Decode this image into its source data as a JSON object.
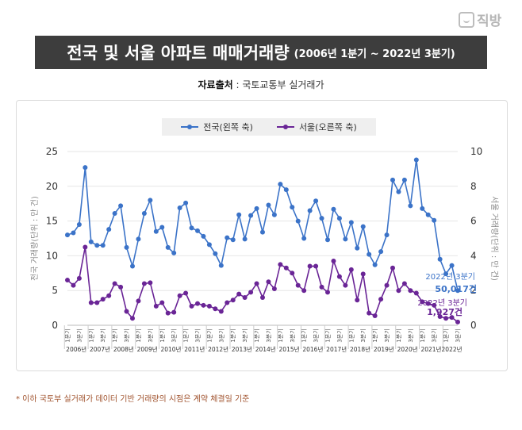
{
  "logo": {
    "text": "직방",
    "icon": "house-chat-icon"
  },
  "banner": {
    "title": "전국 및 서울 아파트 매매거래량",
    "period": "(2006년 1분기 ~ 2022년 3분기)"
  },
  "source": {
    "label": "자료출처",
    "value": " : 국토교통부 실거래가"
  },
  "footnote": "* 이하 국토부 실거래가 데이터 기반 거래량의 시점은 계약 체결일 기준",
  "colors": {
    "national": "#3b73c8",
    "seoul": "#6a2596",
    "banner": "#3d3d3d"
  },
  "chart_data": {
    "type": "line",
    "ylabel_left": "전국 거래량(단위 : 만 건)",
    "ylabel_right": "서울 거래량(단위 : 만 건)",
    "ylim_left": [
      0,
      25
    ],
    "ylim_right": [
      0,
      10
    ],
    "yticks_left": [
      0,
      5,
      10,
      15,
      20,
      25
    ],
    "yticks_right": [
      0,
      2,
      4,
      6,
      8,
      10
    ],
    "grid": true,
    "legend_position": "top-center",
    "quarter_labels": [
      "1분기",
      "",
      "3분기",
      ""
    ],
    "years": [
      "2006년",
      "2007년",
      "2008년",
      "2009년",
      "2010년",
      "2011년",
      "2012년",
      "2013년",
      "2014년",
      "2015년",
      "2016년",
      "2017년",
      "2018년",
      "2019년",
      "2020년",
      "2021년",
      "2022년"
    ],
    "series": [
      {
        "name": "전국(왼쪽 축)",
        "axis": "left",
        "values": [
          13.0,
          13.3,
          14.5,
          22.7,
          12.0,
          11.5,
          11.5,
          13.8,
          16.1,
          17.2,
          11.2,
          8.5,
          12.4,
          16.1,
          18.0,
          13.5,
          14.1,
          11.2,
          10.4,
          16.9,
          17.6,
          14.0,
          13.6,
          12.8,
          11.6,
          10.3,
          8.6,
          12.6,
          12.3,
          15.9,
          12.4,
          15.8,
          16.8,
          13.4,
          17.3,
          15.9,
          20.3,
          19.5,
          17.0,
          15.0,
          12.5,
          16.5,
          17.9,
          15.4,
          12.3,
          16.7,
          15.4,
          12.4,
          14.8,
          11.1,
          14.2,
          10.2,
          8.7,
          10.6,
          13.0,
          20.9,
          19.2,
          20.9,
          17.2,
          23.8,
          16.8,
          15.9,
          15.1,
          9.5,
          7.4,
          8.6,
          5.0
        ]
      },
      {
        "name": "서울(오른쪽 축)",
        "axis": "right",
        "values": [
          2.6,
          2.3,
          2.7,
          4.5,
          1.3,
          1.3,
          1.5,
          1.7,
          2.4,
          2.2,
          0.8,
          0.4,
          1.4,
          2.4,
          2.45,
          1.1,
          1.3,
          0.7,
          0.75,
          1.7,
          1.85,
          1.1,
          1.25,
          1.15,
          1.1,
          0.95,
          0.8,
          1.3,
          1.45,
          1.8,
          1.6,
          1.9,
          2.4,
          1.6,
          2.5,
          2.1,
          3.5,
          3.3,
          3.0,
          2.3,
          2.0,
          3.4,
          3.4,
          2.2,
          1.9,
          3.7,
          2.8,
          2.3,
          3.2,
          1.45,
          2.95,
          0.7,
          0.55,
          1.5,
          2.3,
          3.3,
          2.0,
          2.4,
          2.0,
          1.85,
          1.35,
          1.25,
          1.15,
          0.5,
          0.4,
          0.45,
          0.19
        ]
      }
    ],
    "annotations": [
      {
        "series": "전국(왼쪽 축)",
        "label": "2022년 3분기",
        "value": "50,017건"
      },
      {
        "series": "서울(오른쪽 축)",
        "label": "2022년 3분기",
        "value": "1,927건"
      }
    ]
  }
}
